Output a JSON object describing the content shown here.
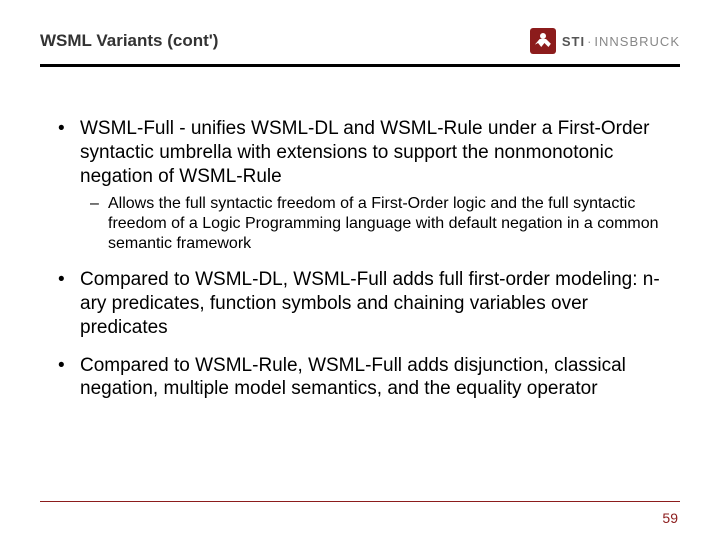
{
  "header": {
    "title": "WSML Variants (cont')",
    "logo": {
      "sti": "STI",
      "city": "INNSBRUCK"
    }
  },
  "bullets": [
    {
      "html": "WSML-Full - unifies WSML-DL and WSML-Rule under a First-Order syntactic umbrella with extensions to support the nonmonotonic negation of WSML-Rule",
      "sub": [
        "Allows the full syntactic freedom of a First-Order logic and the full syntactic freedom of a Logic Programming language with default negation in a common semantic framework"
      ]
    },
    {
      "html": "Compared to WSML-DL, WSML-Full adds full first-order modeling: n-ary predicates, function symbols and chaining variables over predicates"
    },
    {
      "html": "Compared to WSML-Rule, WSML-Full adds disjunction, classical negation, multiple model semantics, and the equality operator"
    }
  ],
  "page_number": "59",
  "colors": {
    "accent": "#8c1c1c",
    "text": "#000000"
  }
}
